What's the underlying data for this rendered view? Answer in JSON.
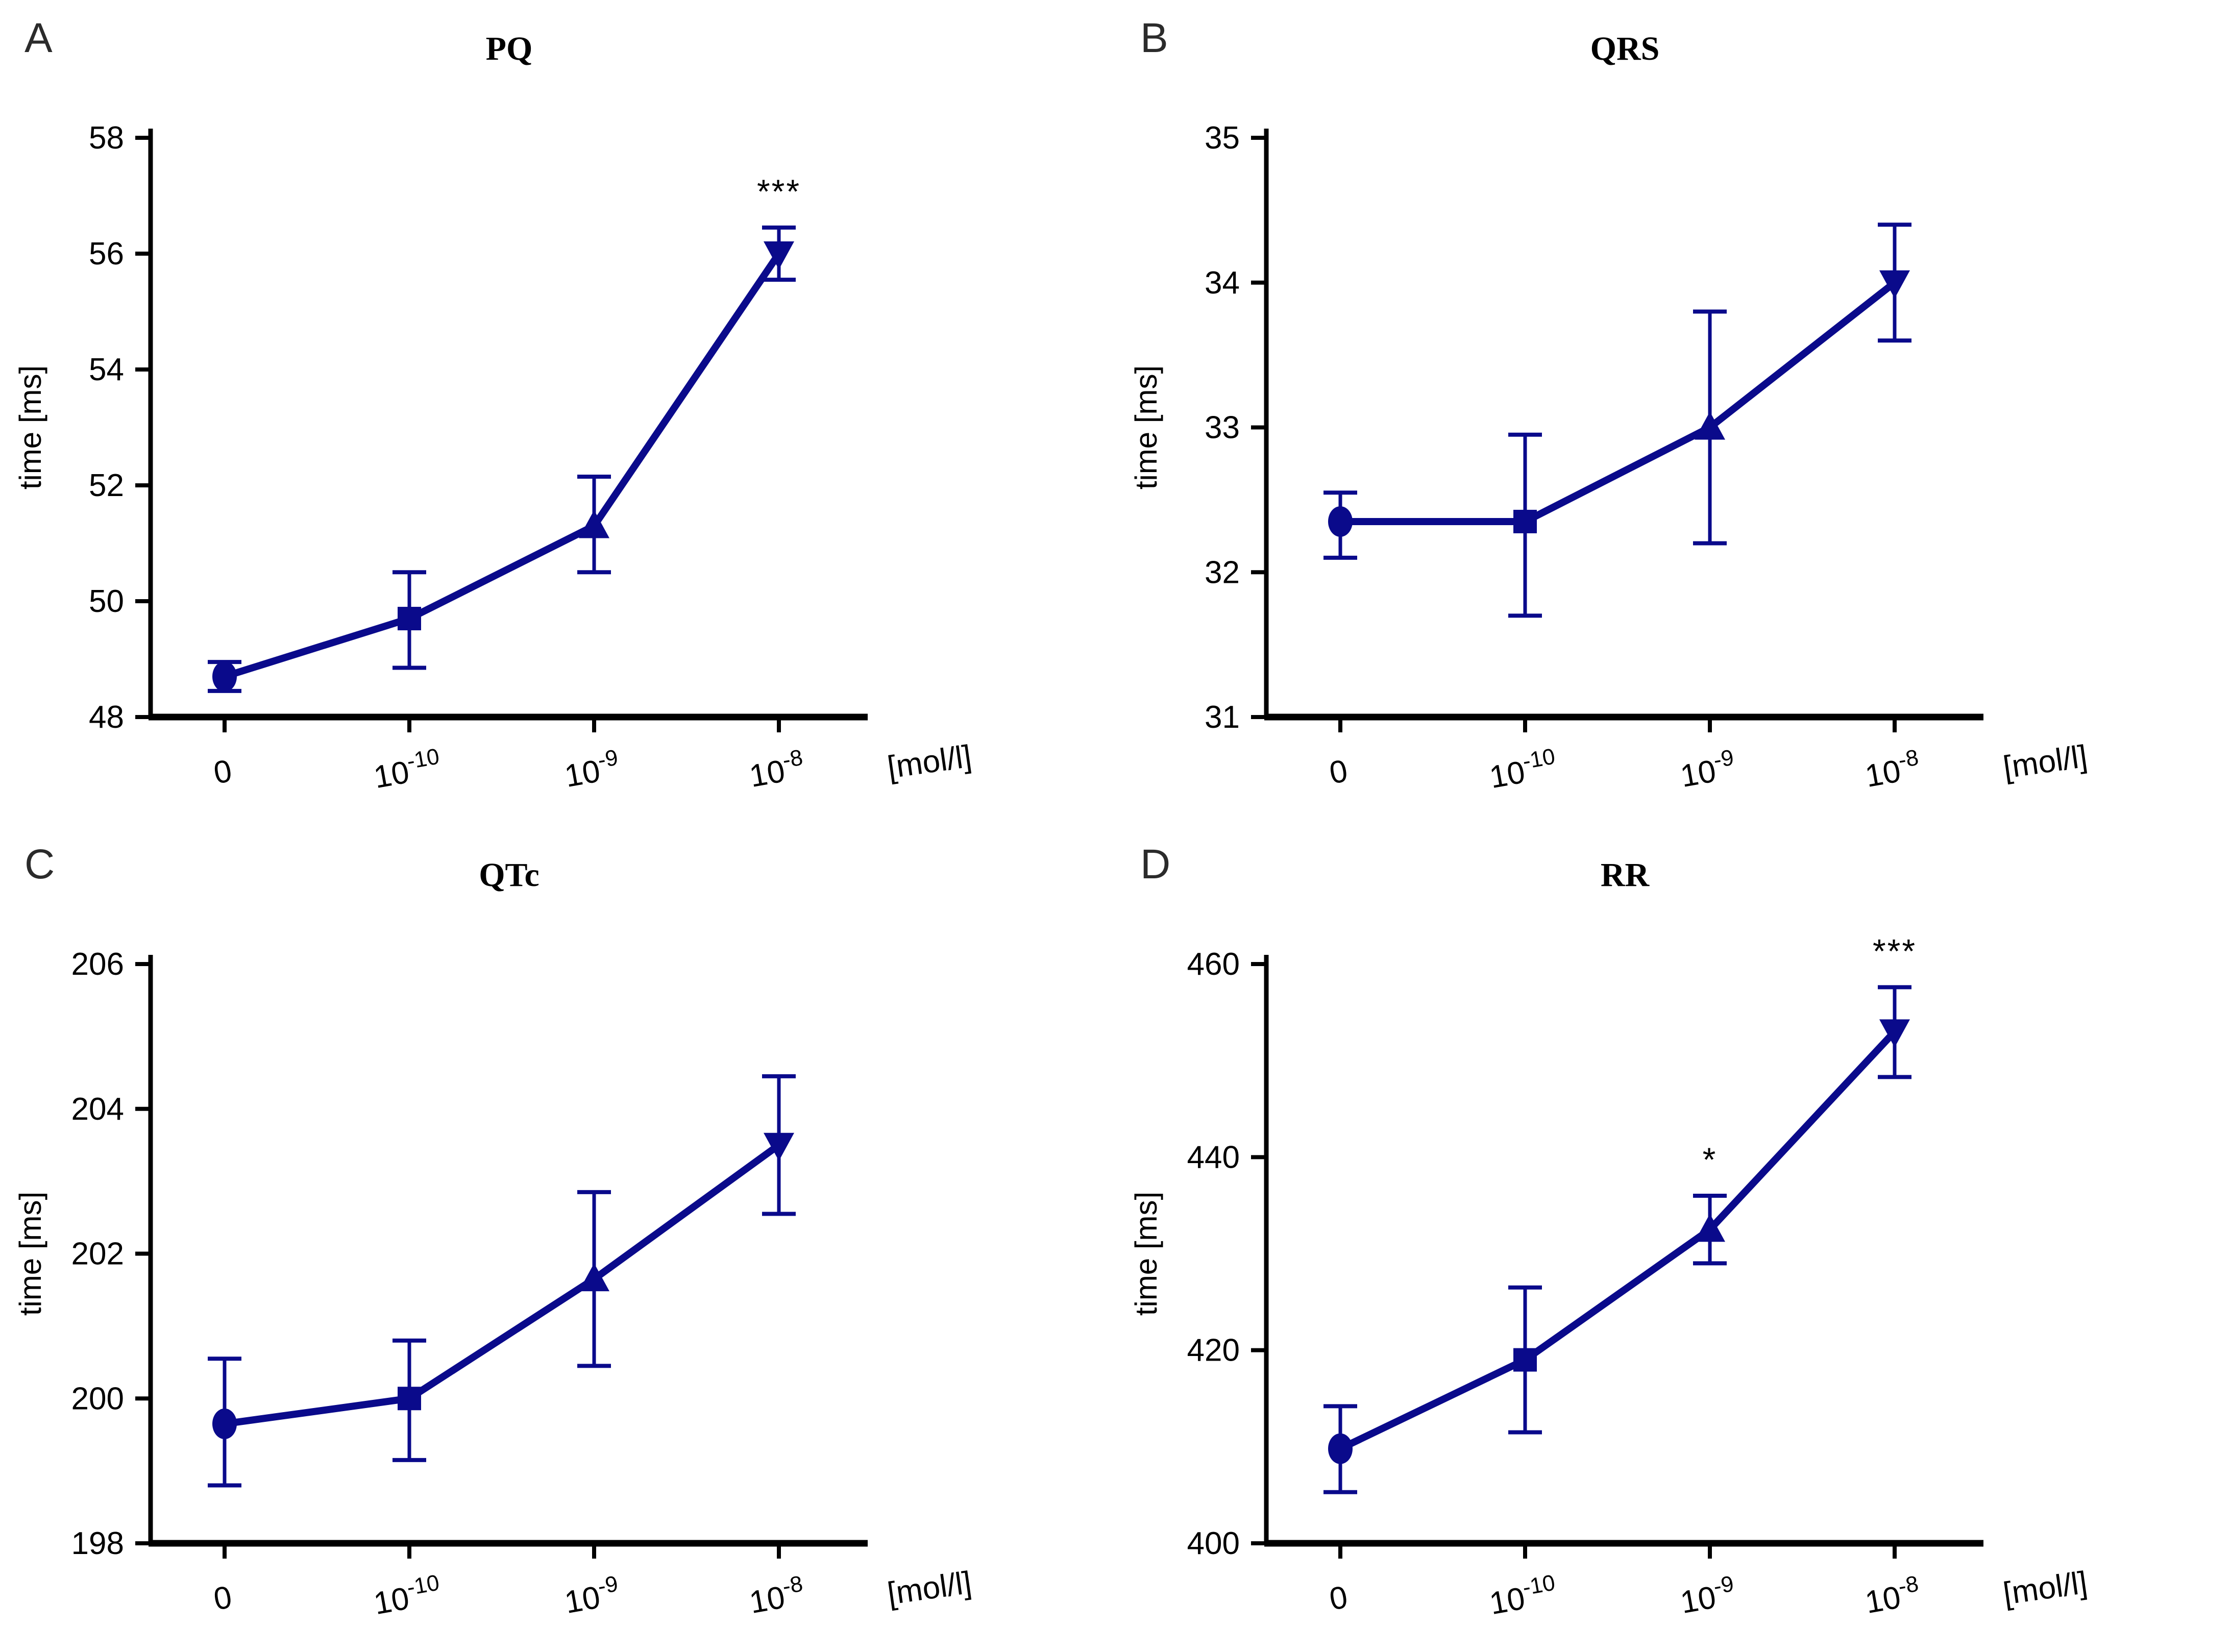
{
  "figure": {
    "x_axis_unit": "[mol/l]",
    "y_axis_label": "time [ms]",
    "marker_shapes": [
      "circle",
      "square",
      "triangle-up",
      "triangle-down"
    ],
    "colors": {
      "series_line": "#0a0a8b",
      "axis": "#000000",
      "tick_text": "#000000",
      "panel_letter": "#2b2b2b",
      "significance_text": "#000000"
    }
  },
  "chart_data": [
    {
      "type": "line",
      "panel_letter": "A",
      "title": "PQ",
      "ylabel": "time [ms]",
      "xlabel": "[mol/l]",
      "categories": [
        "0",
        "10^-10",
        "10^-9",
        "10^-8"
      ],
      "ylim": [
        48,
        58
      ],
      "yticks": [
        48,
        50,
        52,
        54,
        56,
        58
      ],
      "grid": false,
      "legend": false,
      "series": [
        {
          "name": "PQ",
          "values": [
            48.7,
            49.7,
            51.3,
            56.0
          ],
          "err_low": [
            48.45,
            48.85,
            50.5,
            55.55
          ],
          "err_high": [
            48.95,
            50.5,
            52.15,
            56.45
          ]
        }
      ],
      "significance": [
        "",
        "",
        "",
        "***"
      ]
    },
    {
      "type": "line",
      "panel_letter": "B",
      "title": "QRS",
      "ylabel": "time [ms]",
      "xlabel": "[mol/l]",
      "categories": [
        "0",
        "10^-10",
        "10^-9",
        "10^-8"
      ],
      "ylim": [
        31,
        35
      ],
      "yticks": [
        31,
        32,
        33,
        34,
        35
      ],
      "grid": false,
      "legend": false,
      "series": [
        {
          "name": "QRS",
          "values": [
            32.35,
            32.35,
            33.0,
            34.0
          ],
          "err_low": [
            32.1,
            31.7,
            32.2,
            33.6
          ],
          "err_high": [
            32.55,
            32.95,
            33.8,
            34.4
          ]
        }
      ],
      "significance": [
        "",
        "",
        "",
        ""
      ]
    },
    {
      "type": "line",
      "panel_letter": "C",
      "title": "QTc",
      "ylabel": "time [ms]",
      "xlabel": "[mol/l]",
      "categories": [
        "0",
        "10^-10",
        "10^-9",
        "10^-8"
      ],
      "ylim": [
        198,
        206
      ],
      "yticks": [
        198,
        200,
        202,
        204,
        206
      ],
      "grid": false,
      "legend": false,
      "series": [
        {
          "name": "QTc",
          "values": [
            199.65,
            200.0,
            201.65,
            203.5
          ],
          "err_low": [
            198.8,
            199.15,
            200.45,
            202.55
          ],
          "err_high": [
            200.55,
            200.8,
            202.85,
            204.45
          ]
        }
      ],
      "significance": [
        "",
        "",
        "",
        ""
      ]
    },
    {
      "type": "line",
      "panel_letter": "D",
      "title": "RR",
      "ylabel": "time [ms]",
      "xlabel": "[mol/l]",
      "categories": [
        "0",
        "10^-10",
        "10^-9",
        "10^-8"
      ],
      "ylim": [
        400,
        460
      ],
      "yticks": [
        400,
        420,
        440,
        460
      ],
      "grid": false,
      "legend": false,
      "series": [
        {
          "name": "RR",
          "values": [
            409.8,
            419.0,
            432.5,
            453.0
          ],
          "err_low": [
            405.3,
            411.5,
            429.0,
            448.3
          ],
          "err_high": [
            414.2,
            426.5,
            436.0,
            457.6
          ]
        }
      ],
      "significance": [
        "",
        "",
        "*",
        "***"
      ]
    }
  ]
}
